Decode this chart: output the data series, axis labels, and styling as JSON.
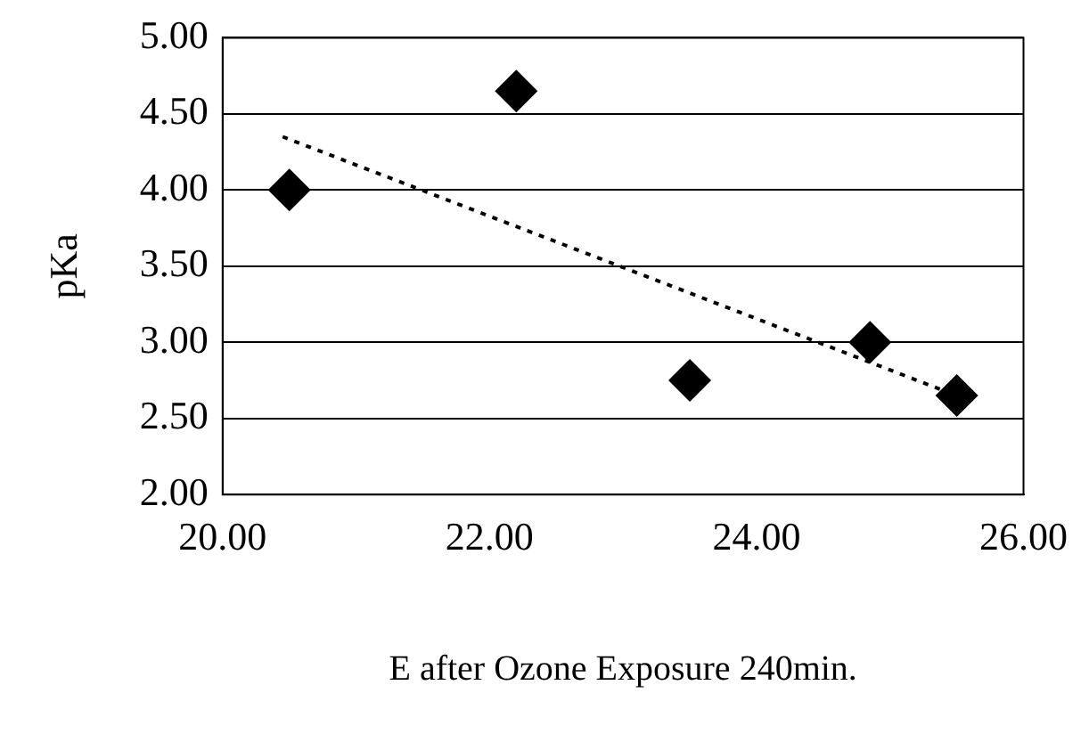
{
  "chart_data": {
    "type": "scatter",
    "xlabel": "E after Ozone Exposure 240min.",
    "ylabel": "pKa",
    "marker": "diamond",
    "grid": "y",
    "legend": false,
    "xlim": [
      20,
      26
    ],
    "ylim": [
      2,
      5
    ],
    "xticks": [
      {
        "value": 20,
        "label": "20.00"
      },
      {
        "value": 22,
        "label": "22.00"
      },
      {
        "value": 24,
        "label": "24.00"
      },
      {
        "value": 26,
        "label": "26.00"
      }
    ],
    "yticks": [
      {
        "value": 2,
        "label": "2.00"
      },
      {
        "value": 2.5,
        "label": "2.50"
      },
      {
        "value": 3,
        "label": "3.00"
      },
      {
        "value": 3.5,
        "label": "3.50"
      },
      {
        "value": 4,
        "label": "4.00"
      },
      {
        "value": 4.5,
        "label": "4.50"
      },
      {
        "value": 5,
        "label": "5.00"
      }
    ],
    "series": [
      {
        "color": "#000000",
        "x": [
          20.5,
          22.2,
          23.5,
          24.85,
          25.5
        ],
        "values": [
          4.0,
          4.65,
          2.75,
          3.0,
          2.65
        ]
      },
      {
        "type": "line",
        "color": "#000000",
        "line_style": "dotted",
        "marker": "none",
        "x": [
          20.45,
          25.5
        ],
        "values": [
          4.35,
          2.65
        ]
      }
    ]
  }
}
